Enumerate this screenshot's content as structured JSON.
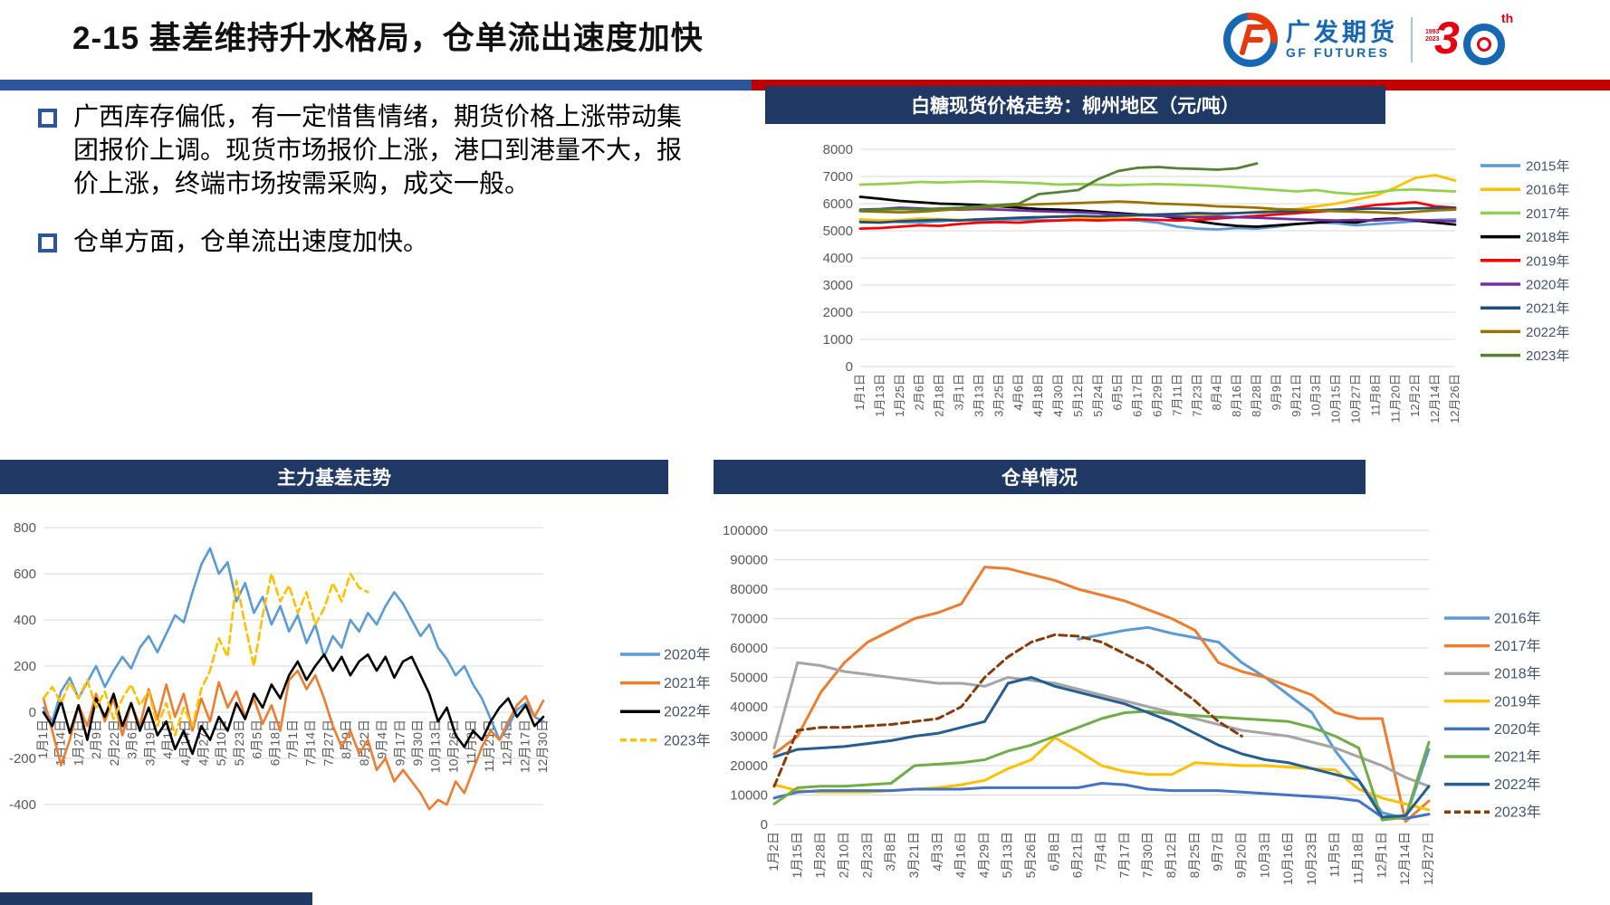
{
  "slide": {
    "title": "2-15 基差维持升水格局，仓单流出速度加快",
    "logo": {
      "cn": "广发期货",
      "en": "GF FUTURES",
      "anniversary_digit": "3",
      "anniversary_suffix": "th",
      "year_start": "1993",
      "year_end": "2023"
    },
    "bullets": [
      {
        "text": "广西库存偏低，有一定惜售情绪，期货价格上涨带动集团报价上调。现货市场报价上涨，港口到港量不大，报价上涨，终端市场按需采购，成交一般。"
      },
      {
        "text": "仓单方面，仓单流出速度加快。"
      }
    ],
    "colors": {
      "navy": "#1F3864",
      "divider_blue": "#2C5697",
      "divider_red": "#C00000"
    }
  },
  "chart_data": [
    {
      "type": "line",
      "title": "白糖现货价格走势：柳州地区（元/吨）",
      "ylim": [
        0,
        8000
      ],
      "ystep": 1000,
      "grid": true,
      "legend_position": "right",
      "x_labels": [
        "1月1日",
        "1月13日",
        "1月25日",
        "2月6日",
        "2月18日",
        "3月1日",
        "3月13日",
        "3月25日",
        "4月6日",
        "4月18日",
        "4月30日",
        "5月12日",
        "5月24日",
        "6月5日",
        "6月17日",
        "6月29日",
        "7月11日",
        "7月23日",
        "8月4日",
        "8月16日",
        "8月28日",
        "9月9日",
        "9月21日",
        "10月3日",
        "10月15日",
        "10月27日",
        "11月8日",
        "11月20日",
        "12月2日",
        "12月14日",
        "12月26日"
      ],
      "series": [
        {
          "name": "2015年",
          "color": "#5B9BD5",
          "dash": false,
          "values": [
            5390,
            5350,
            5320,
            5300,
            5350,
            5400,
            5380,
            5400,
            5420,
            5400,
            5380,
            5420,
            5450,
            5400,
            5380,
            5300,
            5150,
            5080,
            5050,
            5100,
            5080,
            5150,
            5250,
            5300,
            5280,
            5200,
            5250,
            5300,
            5350,
            5400,
            5420
          ]
        },
        {
          "name": "2016年",
          "color": "#FFC000",
          "dash": false,
          "values": [
            5420,
            5380,
            5400,
            5450,
            5430,
            5400,
            5420,
            5450,
            5480,
            5500,
            5520,
            5480,
            5450,
            5500,
            5550,
            5600,
            5580,
            5550,
            5600,
            5650,
            5700,
            5750,
            5800,
            5900,
            6000,
            6150,
            6300,
            6600,
            6950,
            7050,
            6850
          ]
        },
        {
          "name": "2017年",
          "color": "#92D050",
          "dash": false,
          "values": [
            6700,
            6720,
            6750,
            6800,
            6780,
            6800,
            6820,
            6800,
            6780,
            6750,
            6700,
            6720,
            6700,
            6680,
            6700,
            6720,
            6700,
            6680,
            6650,
            6600,
            6550,
            6500,
            6450,
            6500,
            6400,
            6350,
            6420,
            6500,
            6520,
            6480,
            6450
          ]
        },
        {
          "name": "2018年",
          "color": "#000000",
          "dash": false,
          "values": [
            6250,
            6180,
            6100,
            6050,
            6000,
            5980,
            5950,
            5900,
            5850,
            5800,
            5780,
            5750,
            5700,
            5650,
            5600,
            5580,
            5450,
            5350,
            5250,
            5180,
            5150,
            5200,
            5250,
            5300,
            5350,
            5300,
            5420,
            5450,
            5380,
            5300,
            5230
          ]
        },
        {
          "name": "2019年",
          "color": "#FF0000",
          "dash": false,
          "values": [
            5080,
            5100,
            5150,
            5200,
            5180,
            5250,
            5300,
            5320,
            5300,
            5350,
            5380,
            5400,
            5380,
            5400,
            5420,
            5400,
            5380,
            5400,
            5450,
            5500,
            5550,
            5600,
            5650,
            5700,
            5750,
            5850,
            5950,
            6000,
            6050,
            5900,
            5850
          ]
        },
        {
          "name": "2020年",
          "color": "#7030A0",
          "dash": false,
          "values": [
            5780,
            5800,
            5850,
            5820,
            5800,
            5780,
            5800,
            5780,
            5750,
            5720,
            5700,
            5680,
            5650,
            5600,
            5580,
            5550,
            5520,
            5500,
            5520,
            5500,
            5480,
            5450,
            5420,
            5400,
            5380,
            5400,
            5380,
            5420,
            5400,
            5380,
            5350
          ]
        },
        {
          "name": "2021年",
          "color": "#1F4E79",
          "dash": false,
          "values": [
            5320,
            5300,
            5350,
            5380,
            5400,
            5380,
            5420,
            5450,
            5480,
            5500,
            5520,
            5550,
            5530,
            5550,
            5580,
            5600,
            5620,
            5650,
            5630,
            5650,
            5680,
            5700,
            5720,
            5750,
            5780,
            5800,
            5820,
            5800,
            5820,
            5840,
            5830
          ]
        },
        {
          "name": "2022年",
          "color": "#997300",
          "dash": false,
          "values": [
            5720,
            5700,
            5680,
            5700,
            5750,
            5800,
            5850,
            5900,
            5950,
            5980,
            6000,
            6020,
            6050,
            6080,
            6050,
            6000,
            5980,
            5950,
            5900,
            5880,
            5850,
            5800,
            5780,
            5750,
            5720,
            5700,
            5680,
            5650,
            5700,
            5750,
            5780
          ]
        },
        {
          "name": "2023年",
          "color": "#548235",
          "dash": false,
          "values": [
            5750,
            5780,
            5800,
            5780,
            5820,
            5850,
            5900,
            5950,
            6000,
            6350,
            6420,
            6500,
            6900,
            7200,
            7320,
            7350,
            7300,
            7280,
            7250,
            7300,
            7480,
            null,
            null,
            null,
            null,
            null,
            null,
            null,
            null,
            null,
            null
          ]
        }
      ]
    },
    {
      "type": "line",
      "title": "主力基差走势",
      "ylim": [
        -400,
        800
      ],
      "ystep": 200,
      "grid": true,
      "legend_position": "right",
      "x_labels": [
        "1月1日",
        "1月14日",
        "1月27日",
        "2月9日",
        "2月22日",
        "3月6日",
        "3月19日",
        "4月1日",
        "4月14日",
        "4月27日",
        "5月10日",
        "5月23日",
        "6月5日",
        "6月18日",
        "7月1日",
        "7月14日",
        "7月27日",
        "8月9日",
        "8月22日",
        "9月4日",
        "9月17日",
        "9月30日",
        "10月13日",
        "10月26日",
        "11月8日",
        "11月21日",
        "12月4日",
        "12月17日",
        "12月30日"
      ],
      "series": [
        {
          "name": "2020年",
          "color": "#5B9BD5",
          "dash": false,
          "values": [
            20,
            -40,
            90,
            150,
            60,
            130,
            200,
            110,
            180,
            240,
            190,
            280,
            330,
            260,
            340,
            420,
            390,
            520,
            640,
            710,
            600,
            650,
            480,
            560,
            430,
            500,
            380,
            460,
            350,
            420,
            300,
            380,
            240,
            330,
            280,
            400,
            350,
            430,
            380,
            460,
            520,
            470,
            400,
            330,
            380,
            280,
            230,
            160,
            200,
            120,
            60,
            -30,
            -120,
            -60,
            10,
            40,
            -20,
            -40
          ]
        },
        {
          "name": "2021年",
          "color": "#ED7D31",
          "dash": false,
          "values": [
            60,
            -80,
            -230,
            -120,
            30,
            -60,
            80,
            -40,
            60,
            -100,
            40,
            -60,
            100,
            -30,
            120,
            -20,
            80,
            -80,
            60,
            -40,
            130,
            20,
            90,
            -20,
            60,
            -50,
            30,
            -80,
            140,
            180,
            100,
            160,
            60,
            -60,
            -150,
            -80,
            -180,
            -120,
            -250,
            -200,
            -300,
            -250,
            -300,
            -350,
            -420,
            -380,
            -400,
            -300,
            -350,
            -250,
            -150,
            -80,
            -120,
            -40,
            30,
            70,
            -20,
            50
          ]
        },
        {
          "name": "2022年",
          "color": "#000000",
          "dash": false,
          "values": [
            0,
            -60,
            50,
            -90,
            30,
            -120,
            60,
            -20,
            80,
            -60,
            40,
            -80,
            20,
            -100,
            -40,
            -160,
            -80,
            -180,
            -60,
            -120,
            -20,
            -80,
            40,
            -30,
            80,
            20,
            120,
            60,
            160,
            220,
            140,
            200,
            250,
            180,
            240,
            160,
            220,
            250,
            180,
            240,
            150,
            220,
            240,
            160,
            80,
            -40,
            20,
            -100,
            -150,
            -80,
            -120,
            -40,
            20,
            60,
            -20,
            30,
            -60,
            -20
          ]
        },
        {
          "name": "2023年",
          "color": "#FFC000",
          "dash": true,
          "values": [
            60,
            110,
            40,
            130,
            60,
            140,
            20,
            90,
            -30,
            60,
            120,
            30,
            90,
            -60,
            40,
            -100,
            20,
            -60,
            100,
            180,
            320,
            240,
            570,
            380,
            200,
            420,
            600,
            480,
            550,
            430,
            520,
            380,
            450,
            560,
            480,
            600,
            540,
            520,
            null,
            null,
            null,
            null,
            null,
            null,
            null,
            null,
            null,
            null,
            null,
            null,
            null,
            null,
            null,
            null,
            null,
            null,
            null,
            null
          ]
        }
      ]
    },
    {
      "type": "line",
      "title": "仓单情况",
      "ylim": [
        0,
        100000
      ],
      "ystep": 10000,
      "grid": true,
      "legend_position": "right",
      "x_labels": [
        "1月2日",
        "1月15日",
        "1月28日",
        "2月10日",
        "2月23日",
        "3月8日",
        "3月21日",
        "4月3日",
        "4月16日",
        "4月29日",
        "5月13日",
        "5月26日",
        "6月8日",
        "6月21日",
        "7月4日",
        "7月17日",
        "7月30日",
        "8月12日",
        "8月25日",
        "9月7日",
        "9月20日",
        "10月3日",
        "10月16日",
        "10月23日",
        "11月5日",
        "11月18日",
        "12月1日",
        "12月14日",
        "12月27日"
      ],
      "series": [
        {
          "name": "2016年",
          "color": "#5B9BD5",
          "dash": false,
          "values": [
            null,
            null,
            null,
            null,
            null,
            null,
            null,
            null,
            null,
            null,
            null,
            null,
            null,
            63000,
            64500,
            66000,
            67000,
            65000,
            63500,
            62000,
            55000,
            50000,
            44000,
            38000,
            25000,
            15000,
            4000,
            2000,
            25500
          ]
        },
        {
          "name": "2017年",
          "color": "#ED7D31",
          "dash": false,
          "values": [
            24000,
            30000,
            45000,
            55000,
            62000,
            66000,
            70000,
            72000,
            75000,
            87500,
            87000,
            85000,
            83000,
            80000,
            78000,
            76000,
            73000,
            70000,
            66000,
            55000,
            52000,
            50000,
            47000,
            44000,
            38000,
            36000,
            36000,
            1000,
            8000
          ]
        },
        {
          "name": "2018年",
          "color": "#A5A5A5",
          "dash": false,
          "values": [
            26000,
            55000,
            54000,
            52000,
            51000,
            50000,
            49000,
            48000,
            48000,
            47000,
            50000,
            49000,
            48000,
            46000,
            44000,
            42000,
            40000,
            38000,
            36000,
            34000,
            32000,
            31000,
            30000,
            28000,
            26000,
            23000,
            20000,
            16000,
            13000
          ]
        },
        {
          "name": "2019年",
          "color": "#FFC000",
          "dash": false,
          "values": [
            13500,
            11500,
            11000,
            11000,
            11000,
            11500,
            12000,
            12500,
            13500,
            15000,
            19000,
            22000,
            29500,
            25000,
            20000,
            18000,
            17000,
            17000,
            21000,
            20500,
            20000,
            20000,
            19500,
            19000,
            18500,
            12000,
            9000,
            7000,
            5000
          ]
        },
        {
          "name": "2020年",
          "color": "#4472C4",
          "dash": false,
          "values": [
            9000,
            11000,
            11500,
            11500,
            11500,
            11500,
            12000,
            12000,
            12000,
            12500,
            12500,
            12500,
            12500,
            12500,
            14000,
            13500,
            12000,
            11500,
            11500,
            11500,
            11000,
            10500,
            10000,
            9500,
            9000,
            8000,
            2500,
            2000,
            3500
          ]
        },
        {
          "name": "2021年",
          "color": "#70AD47",
          "dash": false,
          "values": [
            7000,
            12500,
            13000,
            13000,
            13500,
            14000,
            20000,
            20500,
            21000,
            22000,
            25000,
            27000,
            30000,
            33000,
            36000,
            38000,
            38500,
            37500,
            37000,
            36500,
            36000,
            35500,
            35000,
            33000,
            30000,
            26000,
            1500,
            2500,
            28000
          ]
        },
        {
          "name": "2022年",
          "color": "#255E91",
          "dash": false,
          "values": [
            23000,
            25500,
            26000,
            26500,
            27500,
            28500,
            30000,
            31000,
            33000,
            35000,
            48000,
            50000,
            47000,
            45000,
            43000,
            41000,
            38000,
            35000,
            31000,
            27000,
            24000,
            22000,
            21000,
            19000,
            17000,
            15000,
            2500,
            3000,
            13000
          ]
        },
        {
          "name": "2023年",
          "color": "#843C0C",
          "dash": true,
          "values": [
            13000,
            32000,
            33000,
            33000,
            33500,
            34000,
            35000,
            36000,
            40000,
            50000,
            57000,
            62000,
            64500,
            64000,
            62000,
            58000,
            54000,
            48000,
            42000,
            35000,
            30000,
            null,
            null,
            null,
            null,
            null,
            null,
            null,
            null
          ]
        }
      ]
    }
  ]
}
